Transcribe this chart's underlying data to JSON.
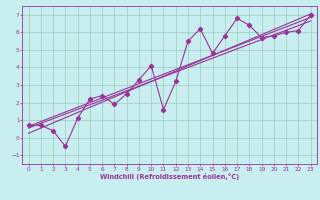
{
  "title": "",
  "xlabel": "Windchill (Refroidissement éolien,°C)",
  "ylabel": "",
  "background_color": "#c8eef0",
  "grid_color": "#99ccbb",
  "line_color": "#993399",
  "xlim": [
    -0.5,
    23.5
  ],
  "ylim": [
    -1.5,
    7.5
  ],
  "xticks": [
    0,
    1,
    2,
    3,
    4,
    5,
    6,
    7,
    8,
    9,
    10,
    11,
    12,
    13,
    14,
    15,
    16,
    17,
    18,
    19,
    20,
    21,
    22,
    23
  ],
  "yticks": [
    -1,
    0,
    1,
    2,
    3,
    4,
    5,
    6,
    7
  ],
  "scatter_x": [
    0,
    1,
    2,
    3,
    4,
    5,
    6,
    7,
    8,
    9,
    10,
    11,
    12,
    13,
    14,
    15,
    16,
    17,
    18,
    19,
    20,
    21,
    22,
    23
  ],
  "scatter_y": [
    0.7,
    0.7,
    0.4,
    -0.5,
    1.1,
    2.2,
    2.4,
    1.9,
    2.5,
    3.3,
    4.1,
    1.6,
    3.2,
    5.5,
    6.2,
    4.8,
    5.8,
    6.8,
    6.4,
    5.7,
    5.8,
    6.0,
    6.1,
    7.0
  ],
  "reg_y1_start": 0.55,
  "reg_y1_end": 6.65,
  "reg_y2_start": 0.25,
  "reg_y2_end": 7.05,
  "reg_y3_start": 0.65,
  "reg_y3_end": 6.85
}
